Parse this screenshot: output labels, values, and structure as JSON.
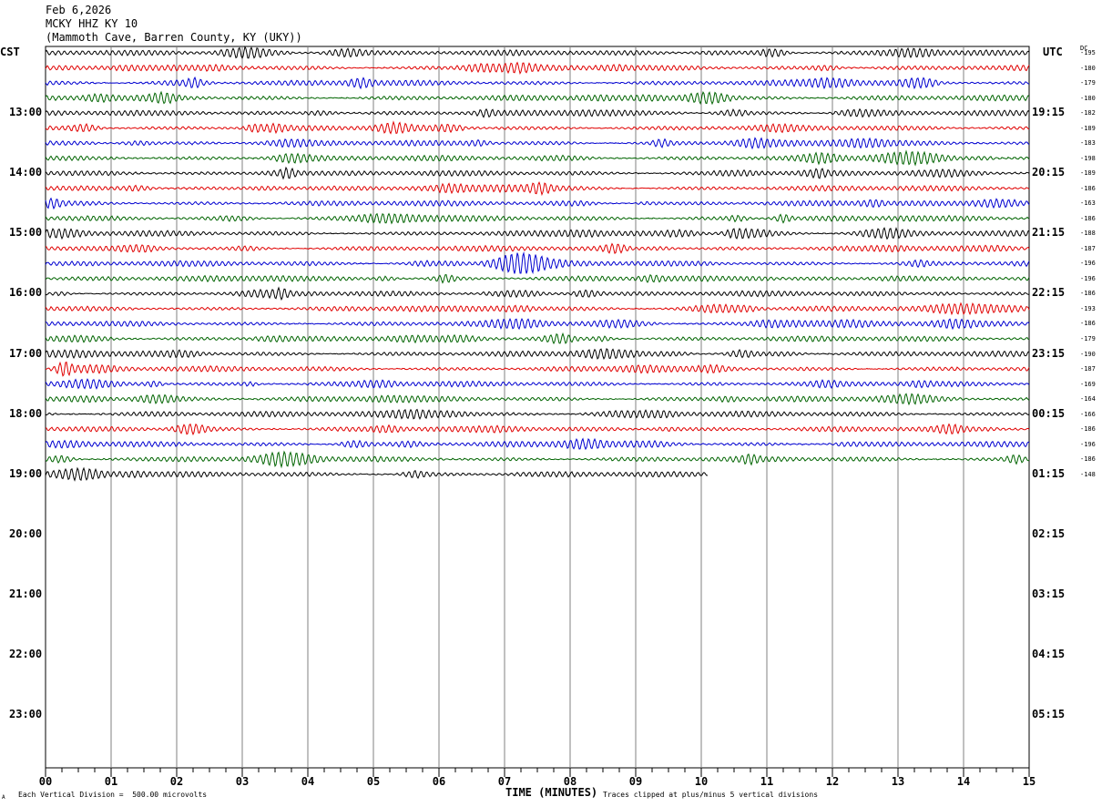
{
  "header": {
    "date": "Feb 6,2026",
    "station": "MCKY HHZ KY 10",
    "location": "(Mammoth Cave, Barren County, KY (UKY))"
  },
  "left_axis_label": "CST",
  "right_axis_label": "UTC",
  "dc_label": "DC",
  "footer": {
    "vertical_division": "Each Vertical Division =  500.00 microvolts",
    "clip_note": "Traces clipped at plus/minus 5 vertical divisions",
    "corner_mark": "A"
  },
  "colors": {
    "cycle": [
      "#000000",
      "#e00000",
      "#0000d0",
      "#006400"
    ],
    "grid": "#808080"
  },
  "chart_data": {
    "type": "line",
    "title": "",
    "xlabel": "TIME (MINUTES)",
    "ylabel": "",
    "xlim": [
      0,
      15
    ],
    "x_ticks": [
      "00",
      "01",
      "02",
      "03",
      "04",
      "05",
      "06",
      "07",
      "08",
      "09",
      "10",
      "11",
      "12",
      "13",
      "14",
      "15"
    ],
    "cst_hour_labels": [
      "13:00",
      "14:00",
      "15:00",
      "16:00",
      "17:00",
      "18:00",
      "19:00",
      "20:00",
      "21:00",
      "22:00",
      "23:00"
    ],
    "utc_hour_labels": [
      "19:15",
      "20:15",
      "21:15",
      "22:15",
      "23:15",
      "00:15",
      "01:15",
      "02:15",
      "03:15",
      "04:15",
      "05:15"
    ],
    "traces_per_hour": 4,
    "minutes_per_trace": 15,
    "trace_dc_offsets": [
      "-195",
      "-180",
      "-179",
      "-180",
      "-182",
      "-189",
      "-183",
      "-198",
      "-189",
      "-186",
      "-163",
      "-186",
      "-188",
      "-187",
      "-196",
      "-196",
      "-186",
      "-193",
      "-186",
      "-179",
      "-190",
      "-187",
      "-169",
      "-164",
      "-166",
      "-186",
      "-196",
      "-186",
      "-148"
    ],
    "last_trace_end_minute": 10.1,
    "grid": true,
    "legend": "none"
  }
}
